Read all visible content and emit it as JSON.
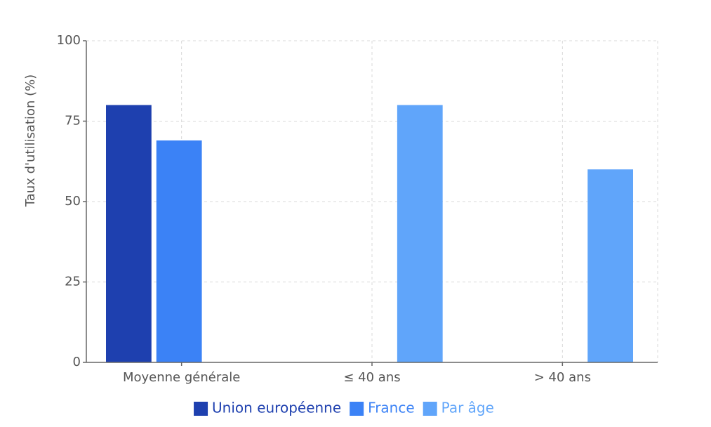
{
  "chart_data": {
    "type": "bar",
    "y_label": "Taux d'utilisation (%)",
    "categories": [
      "Moyenne générale",
      "≤ 40 ans",
      "> 40 ans"
    ],
    "series": [
      {
        "name": "Union européenne",
        "color": "#1e40af",
        "values": [
          80,
          null,
          null
        ]
      },
      {
        "name": "France",
        "color": "#3b82f6",
        "values": [
          69,
          null,
          null
        ]
      },
      {
        "name": "Par âge",
        "color": "#60a5fa",
        "values": [
          null,
          80,
          60
        ]
      }
    ],
    "ylim": [
      0,
      100
    ],
    "yticks": [
      0,
      25,
      50,
      75,
      100
    ],
    "grid": true,
    "legend": "bottom"
  }
}
